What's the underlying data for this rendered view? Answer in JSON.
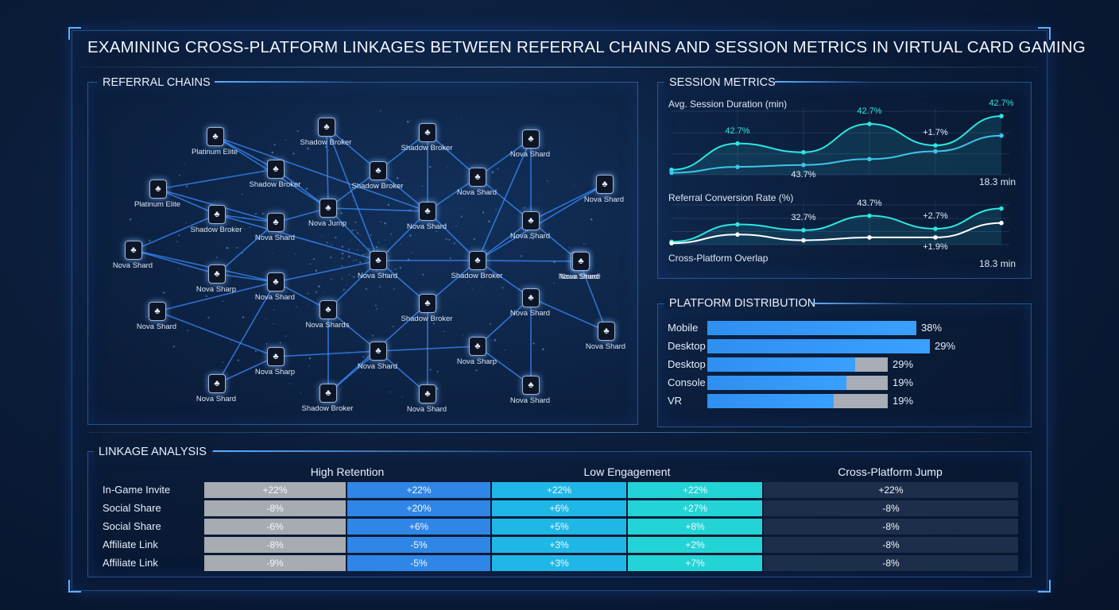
{
  "title": "EXAMINING CROSS-PLATFORM LINKAGES BETWEEN REFERRAL CHAINS AND SESSION METRICS IN VIRTUAL CARD GAMING",
  "referral": {
    "heading": "REFERRAL CHAINS",
    "node_icon": "card-suit-icon",
    "nodes": [
      {
        "label": "Platinum Elite"
      },
      {
        "label": "Shadow Broker"
      },
      {
        "label": "Shadow Broker"
      },
      {
        "label": "Nova Shard"
      },
      {
        "label": "Platinum Elite"
      },
      {
        "label": "Shadow Broker"
      },
      {
        "label": "Shadow Broker"
      },
      {
        "label": "Nova Shard"
      },
      {
        "label": "Nova Shard"
      },
      {
        "label": "Shadow Broker"
      },
      {
        "label": "Nova Shard"
      },
      {
        "label": "Nova Jump"
      },
      {
        "label": "Nova Shard"
      },
      {
        "label": "Nova Shard"
      },
      {
        "label": "Nova Shard"
      },
      {
        "label": "Nova Shard"
      },
      {
        "label": "Shadow Broker"
      },
      {
        "label": "Nova Shard"
      },
      {
        "label": "Nova Sharp"
      },
      {
        "label": "Nova Shard"
      },
      {
        "label": "Nova Shard"
      },
      {
        "label": "Nova Shards"
      },
      {
        "label": "Shadow Broker"
      },
      {
        "label": "Nova Shard"
      },
      {
        "label": "Nova Shard"
      },
      {
        "label": "Nova Sharp"
      },
      {
        "label": "Nova Shard"
      },
      {
        "label": "Nova Sharp"
      },
      {
        "label": "Nova Shard"
      },
      {
        "label": "Shadow Broker"
      },
      {
        "label": "Nova Shard"
      },
      {
        "label": "Nova Shard"
      },
      {
        "label": "Nova Shard"
      }
    ]
  },
  "session": {
    "heading": "SESSION METRICS",
    "chart1_label": "Avg. Session Duration (min)",
    "chart2_label": "Referral Conversion Rate (%)",
    "overlap_label": "Cross-Platform Overlap",
    "chart1_end_value": "18.3 min",
    "chart2_end_value": "18.3 min"
  },
  "chart_data": [
    {
      "type": "line",
      "title": "Avg. Session Duration (min)",
      "x": [
        1,
        2,
        3,
        4,
        5,
        6
      ],
      "series": [
        {
          "values": [
            5,
            32,
            23,
            52,
            30,
            60
          ],
          "point_labels": [
            "",
            "42.7%",
            "",
            "42.7%",
            "+1.7%",
            "42.7%"
          ],
          "color": "#2ee6e0"
        },
        {
          "values": [
            2,
            8,
            10,
            16,
            24,
            40
          ],
          "point_labels": [
            "",
            "",
            "43.7%",
            "",
            "",
            ""
          ],
          "color": "#3fc4e8"
        }
      ]
    },
    {
      "type": "line",
      "title": "Referral Conversion Rate (%)",
      "x": [
        1,
        2,
        3,
        4,
        5,
        6
      ],
      "series": [
        {
          "values": [
            4,
            28,
            20,
            40,
            22,
            50
          ],
          "point_labels": [
            "",
            "",
            "32.7%",
            "43.7%",
            "+2.7%",
            ""
          ],
          "color": "#2ee6e0"
        },
        {
          "values": [
            2,
            14,
            6,
            10,
            10,
            30
          ],
          "point_labels": [
            "",
            "",
            "",
            "",
            "+1.9%",
            ""
          ],
          "color": "#ffffff"
        }
      ]
    },
    {
      "type": "bar",
      "title": "PLATFORM DISTRIBUTION",
      "categories": [
        "Mobile",
        "Desktop",
        "Desktop",
        "Console",
        "VR"
      ],
      "values": [
        38,
        29,
        29,
        19,
        19
      ],
      "value_labels": [
        "38%",
        "29%",
        "29%",
        "19%",
        "19%"
      ],
      "fill": [
        1.0,
        1.0,
        0.82,
        0.77,
        0.7
      ],
      "colors": {
        "fill": "#2f8ff0",
        "track": "#a8adb6"
      }
    }
  ],
  "platform": {
    "heading": "PLATFORM DISTRIBUTION"
  },
  "linkage": {
    "heading": "LINKAGE ANALYSIS",
    "groups": [
      "High Retention",
      "Low Engagement",
      "Cross-Platform Jump"
    ],
    "rows": [
      {
        "label": "In-Game Invite",
        "cells": [
          "+22%",
          "+22%",
          "+22%",
          "+22%",
          "+22%"
        ]
      },
      {
        "label": "Social Share",
        "cells": [
          "-8%",
          "+20%",
          "+6%",
          "+27%",
          "-8%"
        ]
      },
      {
        "label": "Social Share",
        "cells": [
          "-6%",
          "+6%",
          "+5%",
          "+8%",
          "-8%"
        ]
      },
      {
        "label": "Affiliate Link",
        "cells": [
          "-8%",
          "-5%",
          "+3%",
          "+2%",
          "-8%"
        ]
      },
      {
        "label": "Affiliate Link",
        "cells": [
          "-9%",
          "-5%",
          "+3%",
          "+7%",
          "-8%"
        ]
      }
    ],
    "column_colors": [
      "#a7abb2",
      "#2f86e6",
      "#1fb8e6",
      "#22d4d6",
      "#1d2e4a"
    ]
  }
}
